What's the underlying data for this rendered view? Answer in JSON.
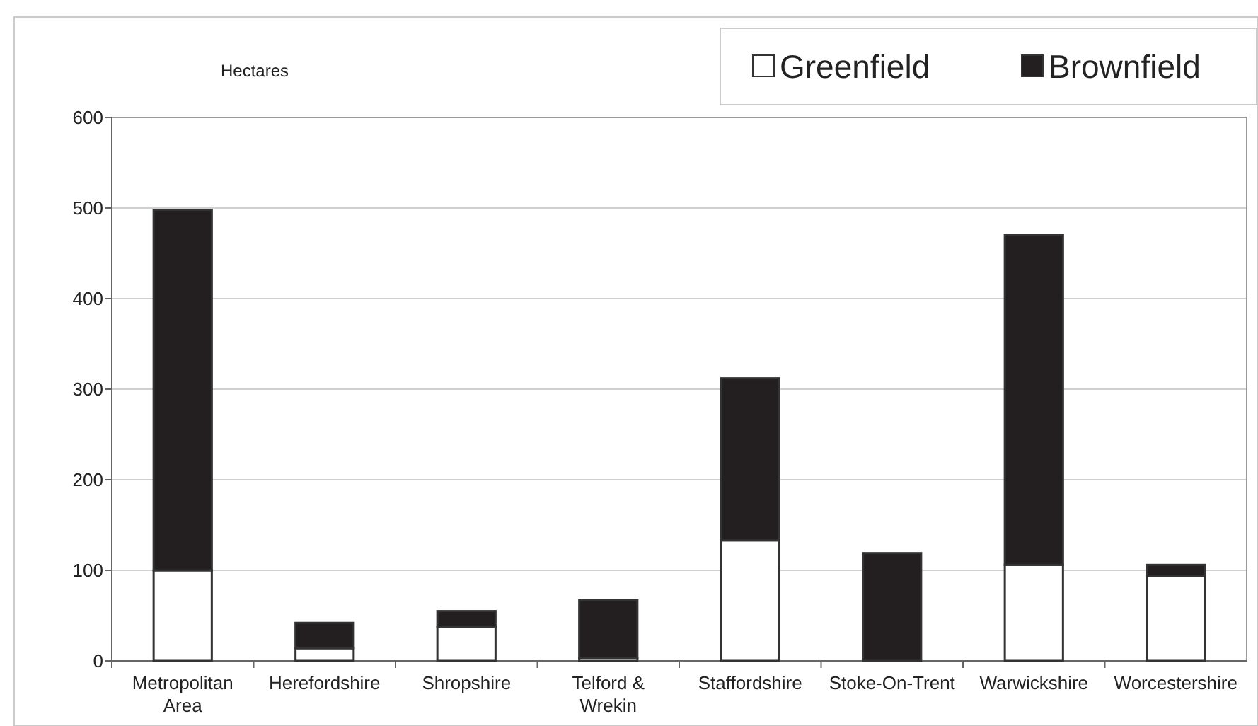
{
  "chart_data": {
    "type": "bar",
    "stacked": true,
    "ylabel": "Hectares",
    "categories": [
      "Metropolitan Area",
      "Herefordshire",
      "Shropshire",
      "Telford & Wrekin",
      "Staffordshire",
      "Stoke-On-Trent",
      "Warwickshire",
      "Worcestershire"
    ],
    "series": [
      {
        "name": "Greenfield",
        "color": "#ffffff",
        "values": [
          100,
          14,
          38,
          3,
          133,
          0,
          106,
          94
        ]
      },
      {
        "name": "Brownfield",
        "color": "#231f20",
        "values": [
          398,
          28,
          17,
          64,
          179,
          119,
          364,
          12
        ]
      }
    ],
    "ylim": [
      0,
      600
    ],
    "yticks": [
      0,
      100,
      200,
      300,
      400,
      500,
      600
    ],
    "grid": "y",
    "legend": "top right"
  }
}
